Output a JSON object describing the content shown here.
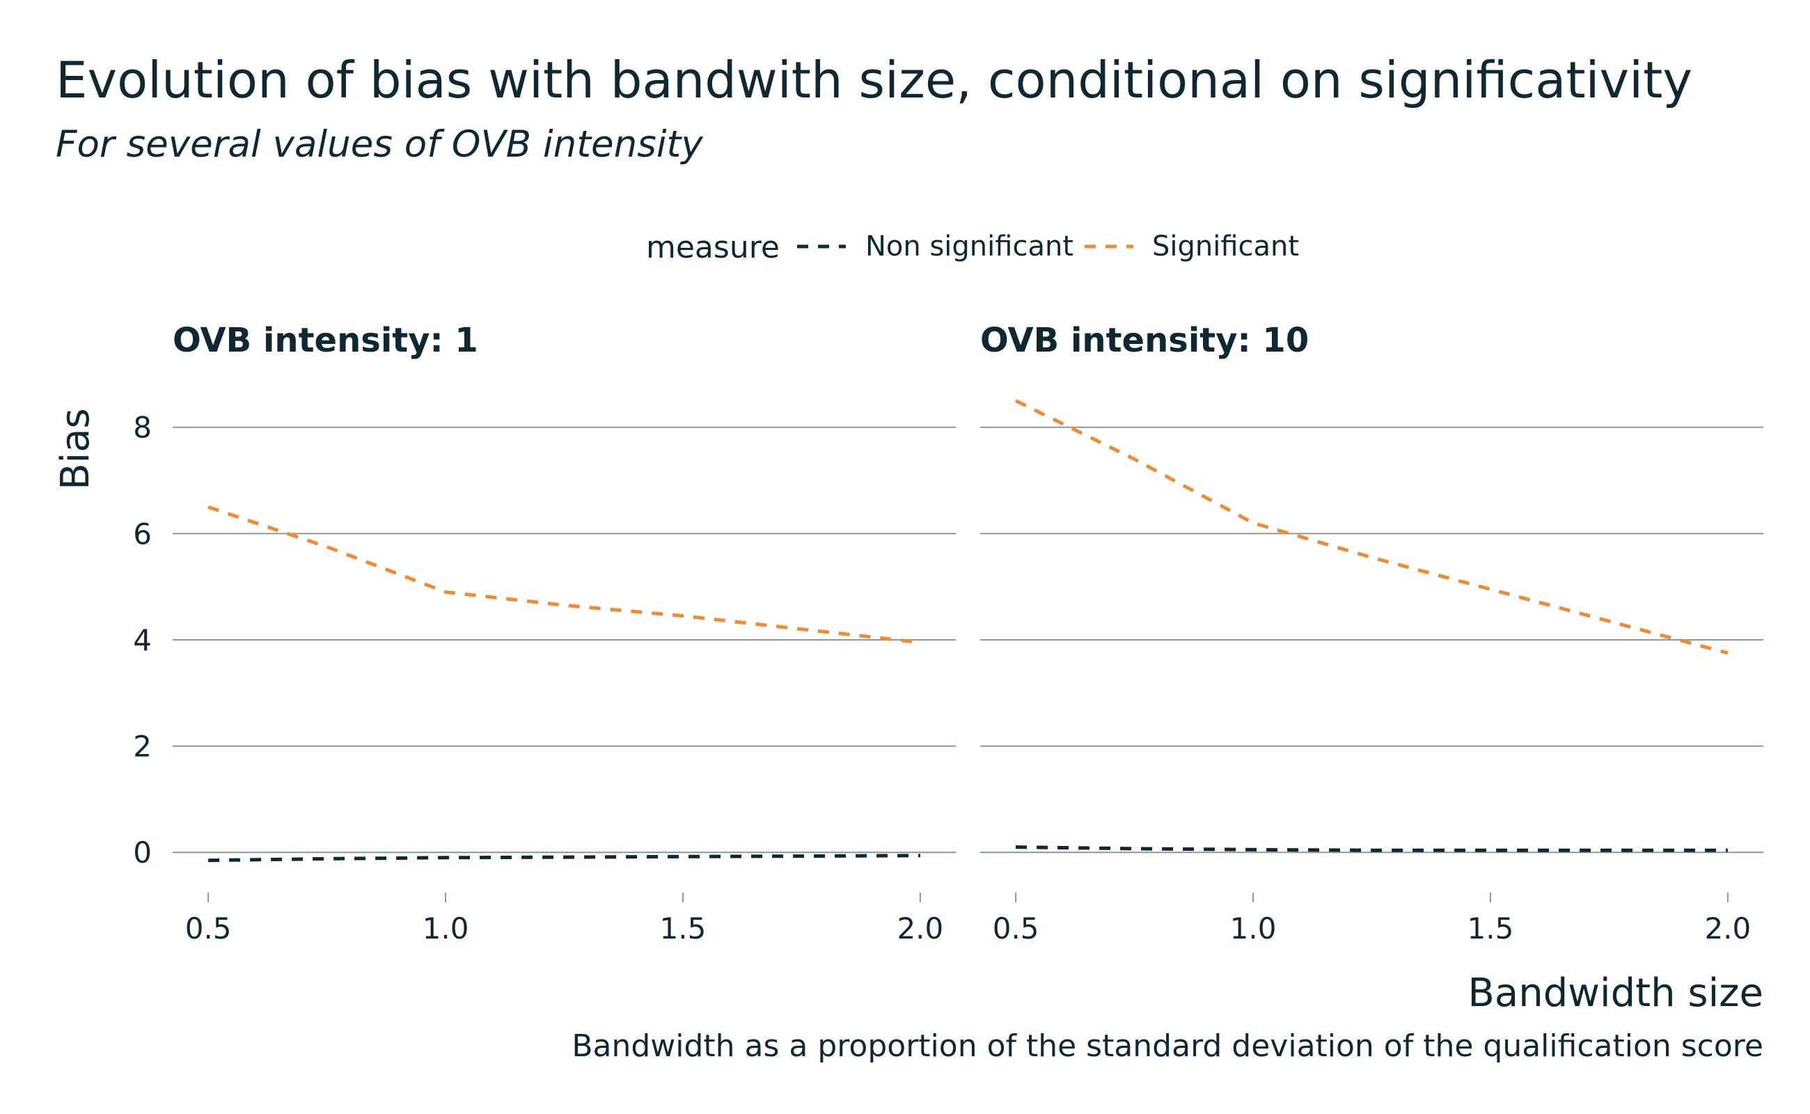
{
  "chart_data": {
    "type": "line",
    "title": "Evolution of bias with bandwith size, conditional on significativity",
    "subtitle": "For several values of OVB intensity",
    "xlabel": "Bandwidth size",
    "ylabel": "Bias",
    "caption": "Bandwidth as a proportion of the standard deviation of the qualification score",
    "legend": {
      "title": "measure",
      "position": "top",
      "entries": [
        "Non significant",
        "Significant"
      ]
    },
    "xlim": [
      0.425,
      2.075
    ],
    "ylim": [
      -0.6,
      8.9
    ],
    "x_ticks": [
      "0.5",
      "1.0",
      "1.5",
      "2.0"
    ],
    "y_ticks": [
      "0",
      "2",
      "4",
      "6",
      "8"
    ],
    "grid": "horizontal",
    "colors": {
      "Non significant": "#0f2832",
      "Significant": "#f08a33"
    },
    "facets": [
      {
        "label": "OVB intensity: 1",
        "series": [
          {
            "name": "Non significant",
            "x": [
              0.5,
              0.75,
              1.0,
              1.25,
              1.5,
              1.75,
              2.0
            ],
            "y": [
              -0.15,
              -0.12,
              -0.1,
              -0.09,
              -0.08,
              -0.07,
              -0.06
            ]
          },
          {
            "name": "Significant",
            "x": [
              0.5,
              0.75,
              1.0,
              1.25,
              1.5,
              1.75,
              2.0
            ],
            "y": [
              6.5,
              5.75,
              4.9,
              4.65,
              4.45,
              4.2,
              3.95
            ]
          }
        ]
      },
      {
        "label": "OVB intensity: 10",
        "series": [
          {
            "name": "Non significant",
            "x": [
              0.5,
              0.75,
              1.0,
              1.25,
              1.5,
              1.75,
              2.0
            ],
            "y": [
              0.1,
              0.07,
              0.05,
              0.04,
              0.04,
              0.04,
              0.04
            ]
          },
          {
            "name": "Significant",
            "x": [
              0.5,
              0.75,
              1.0,
              1.25,
              1.5,
              1.75,
              2.0
            ],
            "y": [
              8.5,
              7.4,
              6.2,
              5.55,
              4.95,
              4.35,
              3.75
            ]
          }
        ]
      }
    ]
  }
}
